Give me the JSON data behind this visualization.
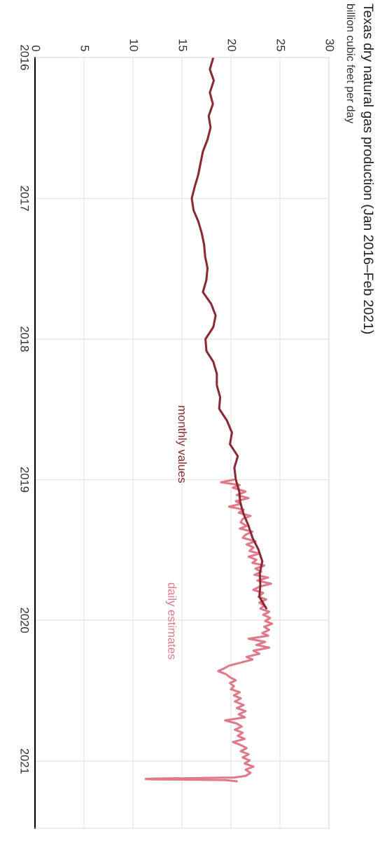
{
  "chart_data": {
    "type": "line",
    "orientation": "horizontal",
    "title": "Texas dry natural gas production (Jan 2016–Feb 2021)",
    "subtitle": "billion cubic feet per day",
    "ylim": [
      "2021-06-24",
      "2016-01-01"
    ],
    "yticks": [
      "2016",
      "2017",
      "2018",
      "2019",
      "2020",
      "2021"
    ],
    "xlim": [
      0,
      30
    ],
    "xticks": [
      0,
      5,
      10,
      15,
      20,
      25,
      30
    ],
    "grid": true,
    "legend": false,
    "marker": "none",
    "line_style": "solid",
    "series": [
      {
        "name": "daily estimates",
        "color": "#e07a8a",
        "x": [
          "2019-01-01",
          "2019-01-08",
          "2019-01-15",
          "2019-01-22",
          "2019-02-01",
          "2019-02-10",
          "2019-02-18",
          "2019-02-26",
          "2019-03-05",
          "2019-03-12",
          "2019-03-20",
          "2019-03-28",
          "2019-04-05",
          "2019-04-13",
          "2019-04-22",
          "2019-05-01",
          "2019-05-08",
          "2019-05-16",
          "2019-05-24",
          "2019-06-01",
          "2019-06-10",
          "2019-06-18",
          "2019-06-26",
          "2019-07-05",
          "2019-07-12",
          "2019-07-20",
          "2019-07-28",
          "2019-08-05",
          "2019-08-12",
          "2019-08-20",
          "2019-08-28",
          "2019-09-05",
          "2019-09-12",
          "2019-09-20",
          "2019-09-28",
          "2019-10-06",
          "2019-10-14",
          "2019-10-22",
          "2019-11-01",
          "2019-11-08",
          "2019-11-16",
          "2019-11-24",
          "2019-12-02",
          "2019-12-10",
          "2019-12-18",
          "2019-12-26",
          "2020-01-03",
          "2020-01-10",
          "2020-01-18",
          "2020-01-26",
          "2020-02-03",
          "2020-02-10",
          "2020-02-18",
          "2020-02-26",
          "2020-03-05",
          "2020-03-12",
          "2020-03-20",
          "2020-03-28",
          "2020-04-05",
          "2020-04-12",
          "2020-04-20",
          "2020-04-28",
          "2020-05-05",
          "2020-05-12",
          "2020-05-20",
          "2020-05-28",
          "2020-06-05",
          "2020-06-12",
          "2020-06-20",
          "2020-06-28",
          "2020-07-06",
          "2020-07-14",
          "2020-07-22",
          "2020-07-30",
          "2020-08-08",
          "2020-08-16",
          "2020-08-24",
          "2020-09-01",
          "2020-09-09",
          "2020-09-17",
          "2020-09-25",
          "2020-10-03",
          "2020-10-11",
          "2020-10-19",
          "2020-10-27",
          "2020-11-04",
          "2020-11-12",
          "2020-11-20",
          "2020-11-28",
          "2020-12-06",
          "2020-12-14",
          "2020-12-22",
          "2020-12-30",
          "2021-01-07",
          "2021-01-15",
          "2021-01-23",
          "2021-01-31",
          "2021-02-08",
          "2021-02-12",
          "2021-02-15",
          "2021-02-16",
          "2021-02-17",
          "2021-02-19",
          "2021-02-22"
        ],
        "values": [
          20.3,
          19.0,
          20.9,
          20.2,
          21.5,
          20.6,
          21.8,
          20.5,
          21.0,
          19.8,
          21.3,
          20.8,
          22.0,
          21.2,
          21.0,
          21.6,
          20.9,
          22.2,
          21.5,
          21.2,
          22.5,
          21.6,
          22.3,
          21.9,
          22.9,
          21.8,
          22.6,
          22.2,
          23.4,
          22.5,
          23.1,
          22.4,
          23.8,
          22.7,
          24.1,
          22.9,
          22.3,
          23.3,
          22.8,
          23.6,
          22.9,
          23.4,
          23.0,
          23.9,
          23.3,
          24.0,
          23.5,
          24.2,
          23.4,
          23.9,
          23.2,
          23.8,
          21.8,
          23.5,
          22.6,
          23.9,
          22.3,
          22.9,
          21.6,
          22.2,
          21.0,
          19.8,
          19.3,
          18.7,
          19.5,
          19.9,
          20.5,
          19.9,
          20.3,
          20.0,
          20.9,
          20.3,
          21.0,
          20.4,
          21.3,
          20.6,
          21.5,
          20.8,
          21.4,
          19.4,
          20.6,
          21.1,
          20.4,
          21.2,
          20.7,
          21.4,
          20.2,
          21.0,
          21.6,
          21.0,
          21.8,
          21.2,
          21.9,
          21.4,
          22.3,
          21.5,
          22.0,
          21.5,
          20.4,
          12.5,
          11.3,
          12.0,
          19.5,
          20.6
        ]
      },
      {
        "name": "monthly values",
        "color": "#8b2a35",
        "x": [
          "2016-01",
          "2016-02",
          "2016-03",
          "2016-04",
          "2016-05",
          "2016-06",
          "2016-07",
          "2016-08",
          "2016-09",
          "2016-10",
          "2016-11",
          "2016-12",
          "2017-01",
          "2017-02",
          "2017-03",
          "2017-04",
          "2017-05",
          "2017-06",
          "2017-07",
          "2017-08",
          "2017-09",
          "2017-10",
          "2017-11",
          "2017-12",
          "2018-01",
          "2018-02",
          "2018-03",
          "2018-04",
          "2018-05",
          "2018-06",
          "2018-07",
          "2018-08",
          "2018-09",
          "2018-10",
          "2018-11",
          "2018-12",
          "2019-01",
          "2019-02",
          "2019-03",
          "2019-04",
          "2019-05",
          "2019-06",
          "2019-07",
          "2019-08",
          "2019-09",
          "2019-10",
          "2019-11",
          "2019-12"
        ],
        "values": [
          18.2,
          17.85,
          18.25,
          17.85,
          18.16,
          17.73,
          17.92,
          17.61,
          17.14,
          16.9,
          16.66,
          16.31,
          16.0,
          16.19,
          16.66,
          17.02,
          17.26,
          17.37,
          17.61,
          17.49,
          17.14,
          17.97,
          18.44,
          18.2,
          17.4,
          17.5,
          18.2,
          18.56,
          18.56,
          18.9,
          18.8,
          19.6,
          20.1,
          19.9,
          20.7,
          20.35,
          20.5,
          20.85,
          20.95,
          21.3,
          21.8,
          22.2,
          22.8,
          23.2,
          22.95,
          23.0,
          22.9,
          23.6
        ]
      }
    ]
  }
}
